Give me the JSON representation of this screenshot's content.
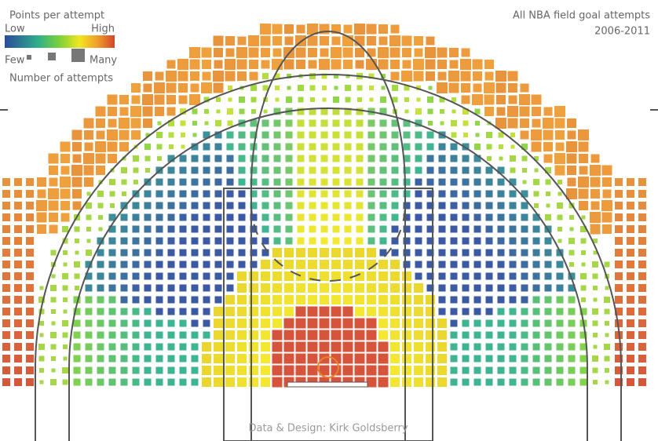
{
  "legend": {
    "title": "Points per attempt",
    "low": "Low",
    "high": "High",
    "few": "Few",
    "many": "Many",
    "size_label": "Number of attempts"
  },
  "header": {
    "title": "All NBA field goal attempts",
    "period": "2006-2011"
  },
  "credit": "Data & Design: Kirk Goldsberry"
}
